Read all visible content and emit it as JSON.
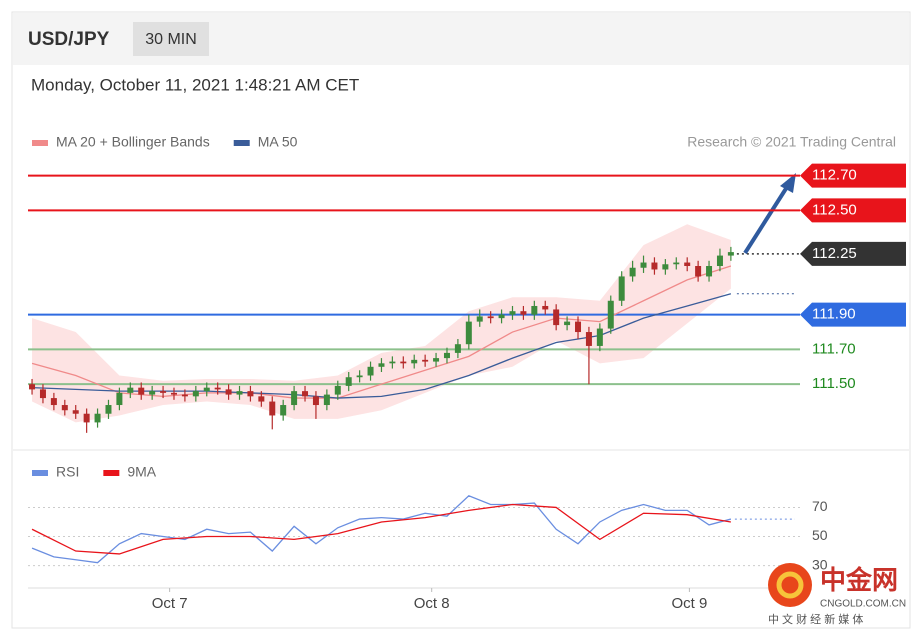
{
  "header": {
    "symbol": "USD/JPY",
    "timeframe": "30 MIN",
    "timestamp": "Monday, October 11, 2021 1:48:21 AM CET"
  },
  "watermark": {
    "brand": "中金网",
    "site": "CNGOLD.COM.CN",
    "tagline": "中 文 财 经 新 媒 体"
  },
  "chart_data": [
    {
      "type": "candlestick",
      "source": "Research © 2021 Trading Central",
      "xlim": [
        -0.37,
        70.33
      ],
      "xticks": [
        {
          "value": 12.6,
          "label": "Oct 7"
        },
        {
          "value": 36.6,
          "label": "Oct 8"
        },
        {
          "value": 60.2,
          "label": "Oct 9"
        }
      ],
      "ylim": [
        111.15,
        112.79
      ],
      "up_color": "#3d8b3d",
      "down_color": "#b52a2a",
      "candles": {
        "open": [
          111.5,
          111.47,
          111.42,
          111.38,
          111.35,
          111.33,
          111.28,
          111.33,
          111.38,
          111.45,
          111.48,
          111.44,
          111.46,
          111.45,
          111.44,
          111.43,
          111.46,
          111.48,
          111.47,
          111.44,
          111.46,
          111.43,
          111.4,
          111.32,
          111.38,
          111.46,
          111.43,
          111.38,
          111.44,
          111.49,
          111.54,
          111.55,
          111.6,
          111.62,
          111.63,
          111.62,
          111.64,
          111.63,
          111.65,
          111.68,
          111.73,
          111.86,
          111.89,
          111.88,
          111.9,
          111.92,
          111.9,
          111.95,
          111.93,
          111.84,
          111.86,
          111.8,
          111.72,
          111.82,
          111.98,
          112.12,
          112.17,
          112.2,
          112.16,
          112.19,
          112.2,
          112.18,
          112.12,
          112.18,
          112.24
        ],
        "high": [
          111.53,
          111.5,
          111.45,
          111.41,
          111.38,
          111.36,
          111.36,
          111.41,
          111.48,
          111.51,
          111.51,
          111.49,
          111.49,
          111.48,
          111.47,
          111.49,
          111.51,
          111.51,
          111.5,
          111.49,
          111.49,
          111.46,
          111.43,
          111.41,
          111.49,
          111.49,
          111.46,
          111.47,
          111.52,
          111.57,
          111.58,
          111.63,
          111.65,
          111.66,
          111.66,
          111.67,
          111.67,
          111.68,
          111.71,
          111.76,
          111.9,
          111.93,
          111.92,
          111.93,
          111.95,
          111.95,
          111.98,
          111.98,
          111.96,
          111.89,
          111.89,
          111.83,
          111.85,
          112.01,
          112.15,
          112.21,
          112.24,
          112.23,
          112.22,
          112.23,
          112.23,
          112.21,
          112.21,
          112.28,
          112.29
        ],
        "low": [
          111.44,
          111.39,
          111.35,
          111.32,
          111.3,
          111.22,
          111.25,
          111.3,
          111.35,
          111.42,
          111.41,
          111.41,
          111.42,
          111.41,
          111.4,
          111.4,
          111.43,
          111.44,
          111.41,
          111.41,
          111.4,
          111.37,
          111.24,
          111.29,
          111.35,
          111.4,
          111.3,
          111.35,
          111.41,
          111.46,
          111.51,
          111.52,
          111.57,
          111.59,
          111.59,
          111.59,
          111.6,
          111.6,
          111.62,
          111.65,
          111.7,
          111.83,
          111.85,
          111.85,
          111.87,
          111.87,
          111.87,
          111.9,
          111.81,
          111.81,
          111.76,
          111.5,
          111.69,
          111.79,
          111.95,
          112.09,
          112.14,
          112.13,
          112.13,
          112.16,
          112.15,
          112.09,
          112.09,
          112.15,
          112.21
        ],
        "close": [
          111.47,
          111.42,
          111.38,
          111.35,
          111.33,
          111.28,
          111.33,
          111.38,
          111.45,
          111.48,
          111.44,
          111.46,
          111.45,
          111.44,
          111.43,
          111.46,
          111.48,
          111.47,
          111.44,
          111.46,
          111.43,
          111.4,
          111.32,
          111.38,
          111.46,
          111.43,
          111.38,
          111.44,
          111.49,
          111.54,
          111.55,
          111.6,
          111.62,
          111.63,
          111.62,
          111.64,
          111.63,
          111.65,
          111.68,
          111.73,
          111.86,
          111.89,
          111.88,
          111.9,
          111.92,
          111.9,
          111.95,
          111.93,
          111.84,
          111.86,
          111.8,
          111.72,
          111.82,
          111.98,
          112.12,
          112.17,
          112.2,
          112.16,
          112.19,
          112.2,
          112.18,
          112.12,
          112.18,
          112.24,
          112.26
        ]
      },
      "series": [
        {
          "name": "MA 20 + Bollinger Bands",
          "color": "#f08a8a",
          "band_color": "#fde3e3",
          "x": [
            0,
            4,
            8,
            12,
            16,
            20,
            24,
            28,
            32,
            36,
            40,
            44,
            48,
            52,
            56,
            60,
            64
          ],
          "values": [
            111.62,
            111.55,
            111.45,
            111.43,
            111.45,
            111.45,
            111.42,
            111.42,
            111.5,
            111.58,
            111.66,
            111.8,
            111.88,
            111.86,
            111.98,
            112.1,
            112.18
          ],
          "upper": [
            111.88,
            111.8,
            111.55,
            111.52,
            111.53,
            111.53,
            111.52,
            111.55,
            111.68,
            111.72,
            111.92,
            112.0,
            112.0,
            111.98,
            112.3,
            112.42,
            112.33
          ],
          "lower": [
            111.4,
            111.28,
            111.32,
            111.38,
            111.4,
            111.38,
            111.3,
            111.3,
            111.35,
            111.45,
            111.55,
            111.6,
            111.75,
            111.62,
            111.65,
            111.85,
            112.05
          ]
        },
        {
          "name": "MA 50",
          "color": "#3a5c99",
          "x": [
            0,
            4,
            8,
            12,
            16,
            20,
            24,
            28,
            32,
            36,
            40,
            44,
            48,
            52,
            56,
            60,
            64
          ],
          "values": [
            111.48,
            111.47,
            111.46,
            111.46,
            111.46,
            111.45,
            111.44,
            111.42,
            111.43,
            111.47,
            111.55,
            111.65,
            111.74,
            111.78,
            111.88,
            111.95,
            112.02
          ]
        }
      ],
      "levels": [
        {
          "value": 112.7,
          "label": "112.70",
          "color": "#e8141b",
          "box": true
        },
        {
          "value": 112.5,
          "label": "112.50",
          "color": "#e8141b",
          "box": true
        },
        {
          "value": 112.25,
          "label": "112.25",
          "color": "#333333",
          "box": true,
          "dotted": true
        },
        {
          "value": 111.9,
          "label": "111.90",
          "color": "#2f6be0",
          "box": true
        },
        {
          "value": 111.7,
          "label": "111.70",
          "color": "#8cc08c",
          "text_color": "#1f8a1f",
          "box": false
        },
        {
          "value": 111.5,
          "label": "111.50",
          "color": "#8cc08c",
          "text_color": "#1f8a1f",
          "box": false
        }
      ]
    },
    {
      "type": "line",
      "xlim": [
        -0.37,
        70.33
      ],
      "ylim": [
        18,
        82
      ],
      "yticks": [
        30,
        50,
        70
      ],
      "grid": true,
      "series": [
        {
          "name": "RSI",
          "color": "#6a8ee0",
          "x": [
            0,
            2,
            4,
            6,
            8,
            10,
            12,
            14,
            16,
            18,
            20,
            22,
            24,
            26,
            28,
            30,
            32,
            34,
            36,
            38,
            40,
            42,
            44,
            46,
            48,
            50,
            52,
            54,
            56,
            58,
            60,
            62,
            64
          ],
          "values": [
            42,
            36,
            34,
            32,
            45,
            52,
            50,
            48,
            55,
            52,
            53,
            40,
            57,
            45,
            56,
            62,
            63,
            62,
            66,
            64,
            78,
            72,
            72,
            73,
            55,
            45,
            60,
            68,
            72,
            68,
            68,
            58,
            62
          ]
        },
        {
          "name": "9MA",
          "color": "#e8141b",
          "x": [
            0,
            4,
            8,
            12,
            16,
            20,
            24,
            28,
            32,
            36,
            40,
            44,
            48,
            52,
            56,
            60,
            64
          ],
          "values": [
            55,
            40,
            38,
            48,
            50,
            50,
            48,
            52,
            60,
            63,
            68,
            72,
            70,
            48,
            66,
            65,
            60
          ]
        }
      ]
    }
  ]
}
